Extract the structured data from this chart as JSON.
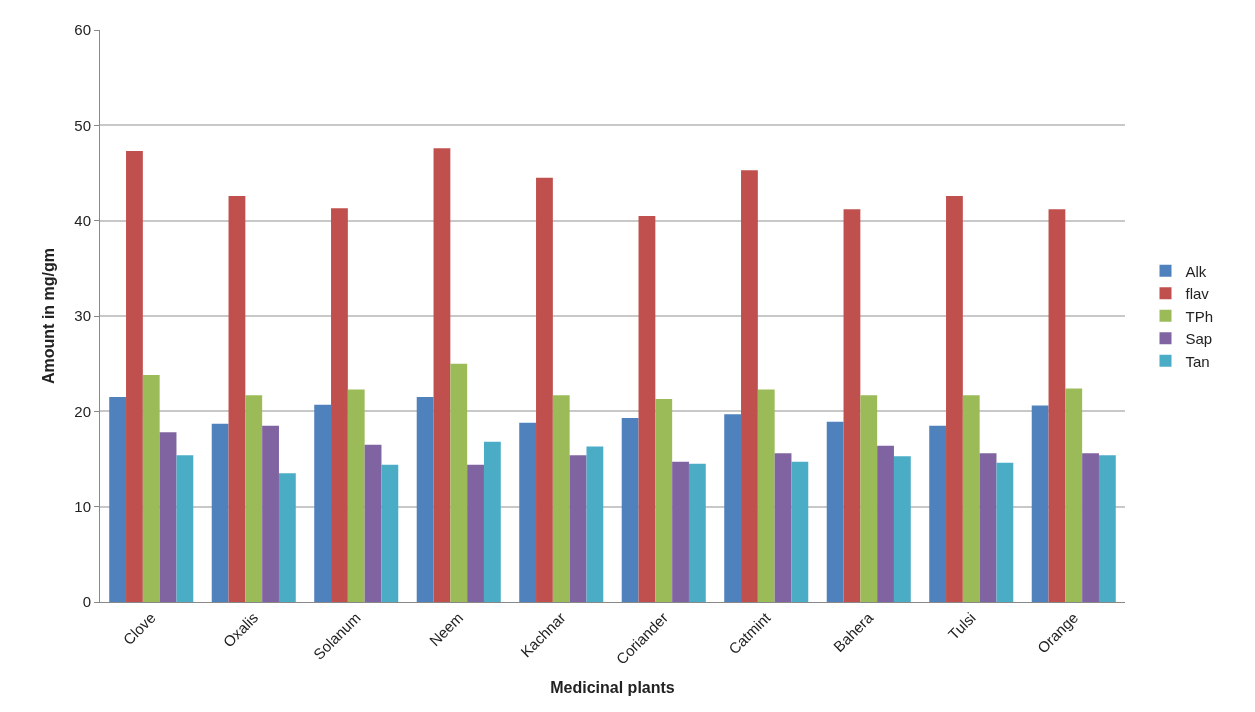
{
  "chart_data": {
    "type": "bar",
    "xlabel": "Medicinal plants",
    "ylabel": "Amount in mg/gm",
    "categories": [
      "Clove",
      "Oxalis",
      "Solanum",
      "Neem",
      "Kachnar",
      "Coriander",
      "Catmint",
      "Bahera",
      "Tulsi",
      "Orange"
    ],
    "series": [
      {
        "name": "Alk",
        "color": "#4f81bd",
        "values": [
          21.5,
          18.7,
          20.7,
          21.5,
          18.8,
          19.3,
          19.7,
          18.9,
          18.5,
          20.6
        ]
      },
      {
        "name": "flav",
        "color": "#c0504d",
        "values": [
          47.3,
          42.6,
          41.3,
          47.6,
          44.5,
          40.5,
          45.3,
          41.2,
          42.6,
          41.2
        ]
      },
      {
        "name": "TPh",
        "color": "#9bbb59",
        "values": [
          23.8,
          21.7,
          22.3,
          25.0,
          21.7,
          21.3,
          22.3,
          21.7,
          21.7,
          22.4
        ]
      },
      {
        "name": "Sap",
        "color": "#8064a2",
        "values": [
          17.8,
          18.5,
          16.5,
          14.4,
          15.4,
          14.7,
          15.6,
          16.4,
          15.6,
          15.6
        ]
      },
      {
        "name": "Tan",
        "color": "#4bacc6",
        "values": [
          15.4,
          13.5,
          14.4,
          16.8,
          16.3,
          14.5,
          14.7,
          15.3,
          14.6,
          15.4
        ]
      }
    ],
    "ylim": [
      0,
      60
    ],
    "yticks": [
      0,
      10,
      20,
      30,
      40,
      50,
      60
    ],
    "grid": "y",
    "legend": "right"
  }
}
